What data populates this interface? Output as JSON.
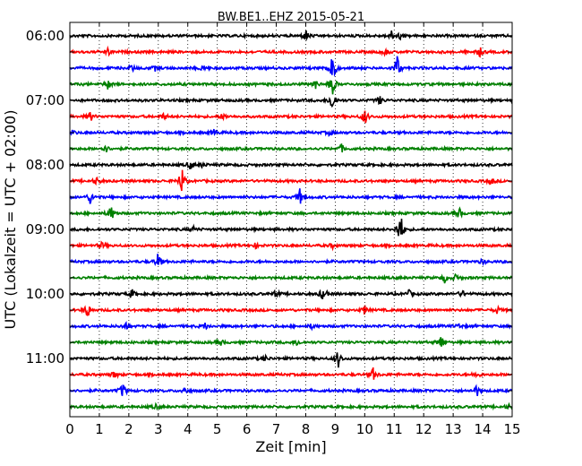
{
  "chart_data": {
    "type": "line",
    "title": "BW.BE1..EHZ 2015-05-21",
    "xlabel": "Zeit  [min]",
    "ylabel": "UTC (Lokalzeit = UTC + 02:00)",
    "xlim": [
      0,
      15
    ],
    "x_ticks": [
      "0",
      "1",
      "2",
      "3",
      "4",
      "5",
      "6",
      "7",
      "8",
      "9",
      "10",
      "11",
      "12",
      "13",
      "14",
      "15"
    ],
    "y_tick_labels": [
      "06:00",
      "07:00",
      "08:00",
      "09:00",
      "10:00",
      "11:00"
    ],
    "trace_interval_min": 15,
    "grid": true,
    "trace_colors": [
      "#000000",
      "#ff0000",
      "#0000ff",
      "#008000"
    ],
    "traces": [
      {
        "start": "06:00",
        "events": [
          [
            8.0,
            0.25
          ],
          [
            10.9,
            0.2
          ],
          [
            11.2,
            0.15
          ]
        ]
      },
      {
        "start": "06:15",
        "events": [
          [
            1.3,
            0.15
          ],
          [
            10.7,
            0.15
          ],
          [
            13.9,
            0.2
          ]
        ]
      },
      {
        "start": "06:30",
        "events": [
          [
            2.1,
            0.15
          ],
          [
            2.9,
            0.1
          ],
          [
            4.5,
            0.1
          ],
          [
            8.9,
            1.0
          ],
          [
            11.1,
            0.6
          ]
        ]
      },
      {
        "start": "06:45",
        "events": [
          [
            1.3,
            0.25
          ],
          [
            8.3,
            0.25
          ],
          [
            8.9,
            0.5
          ]
        ]
      },
      {
        "start": "07:00",
        "events": [
          [
            8.9,
            0.5
          ],
          [
            10.5,
            0.2
          ]
        ]
      },
      {
        "start": "07:15",
        "events": [
          [
            0.7,
            0.2
          ],
          [
            3.2,
            0.15
          ],
          [
            5.2,
            0.15
          ],
          [
            10.0,
            0.35
          ]
        ]
      },
      {
        "start": "07:30",
        "events": [
          [
            0.1,
            0.1
          ],
          [
            4.9,
            0.15
          ],
          [
            8.8,
            0.1
          ]
        ]
      },
      {
        "start": "07:45",
        "events": [
          [
            1.2,
            0.2
          ],
          [
            9.2,
            0.2
          ]
        ]
      },
      {
        "start": "08:00",
        "events": [
          [
            4.1,
            0.2
          ],
          [
            4.5,
            0.1
          ]
        ]
      },
      {
        "start": "08:15",
        "events": [
          [
            3.8,
            0.6
          ],
          [
            0.9,
            0.15
          ],
          [
            14.3,
            0.15
          ]
        ]
      },
      {
        "start": "08:30",
        "events": [
          [
            0.7,
            0.3
          ],
          [
            7.8,
            0.35
          ]
        ]
      },
      {
        "start": "08:45",
        "events": [
          [
            1.4,
            0.35
          ],
          [
            13.2,
            0.25
          ]
        ]
      },
      {
        "start": "09:00",
        "events": [
          [
            11.2,
            0.9
          ],
          [
            4.2,
            0.1
          ]
        ]
      },
      {
        "start": "09:15",
        "events": [
          [
            1.1,
            0.15
          ],
          [
            6.3,
            0.1
          ],
          [
            8.9,
            0.1
          ]
        ]
      },
      {
        "start": "09:30",
        "events": [
          [
            3.0,
            0.4
          ],
          [
            14.0,
            0.1
          ]
        ]
      },
      {
        "start": "09:45",
        "events": [
          [
            12.7,
            0.2
          ],
          [
            13.1,
            0.15
          ]
        ]
      },
      {
        "start": "10:00",
        "events": [
          [
            2.1,
            0.2
          ],
          [
            7.0,
            0.15
          ],
          [
            8.6,
            0.35
          ],
          [
            11.5,
            0.15
          ],
          [
            13.3,
            0.15
          ]
        ]
      },
      {
        "start": "10:15",
        "events": [
          [
            0.6,
            0.35
          ],
          [
            10.0,
            0.2
          ],
          [
            14.5,
            0.15
          ]
        ]
      },
      {
        "start": "10:30",
        "events": [
          [
            1.9,
            0.15
          ],
          [
            4.6,
            0.15
          ],
          [
            8.2,
            0.1
          ],
          [
            13.2,
            0.1
          ]
        ]
      },
      {
        "start": "10:45",
        "events": [
          [
            5.1,
            0.15
          ],
          [
            7.7,
            0.15
          ],
          [
            12.6,
            0.35
          ]
        ]
      },
      {
        "start": "11:00",
        "events": [
          [
            6.6,
            0.15
          ],
          [
            9.1,
            0.4
          ]
        ]
      },
      {
        "start": "11:15",
        "events": [
          [
            1.5,
            0.15
          ],
          [
            10.3,
            0.3
          ],
          [
            13.8,
            0.15
          ]
        ]
      },
      {
        "start": "11:30",
        "events": [
          [
            1.8,
            0.35
          ],
          [
            3.9,
            0.15
          ],
          [
            13.8,
            0.25
          ]
        ]
      },
      {
        "start": "11:45",
        "events": [
          [
            2.9,
            0.1
          ],
          [
            14.9,
            0.1
          ]
        ]
      }
    ]
  }
}
